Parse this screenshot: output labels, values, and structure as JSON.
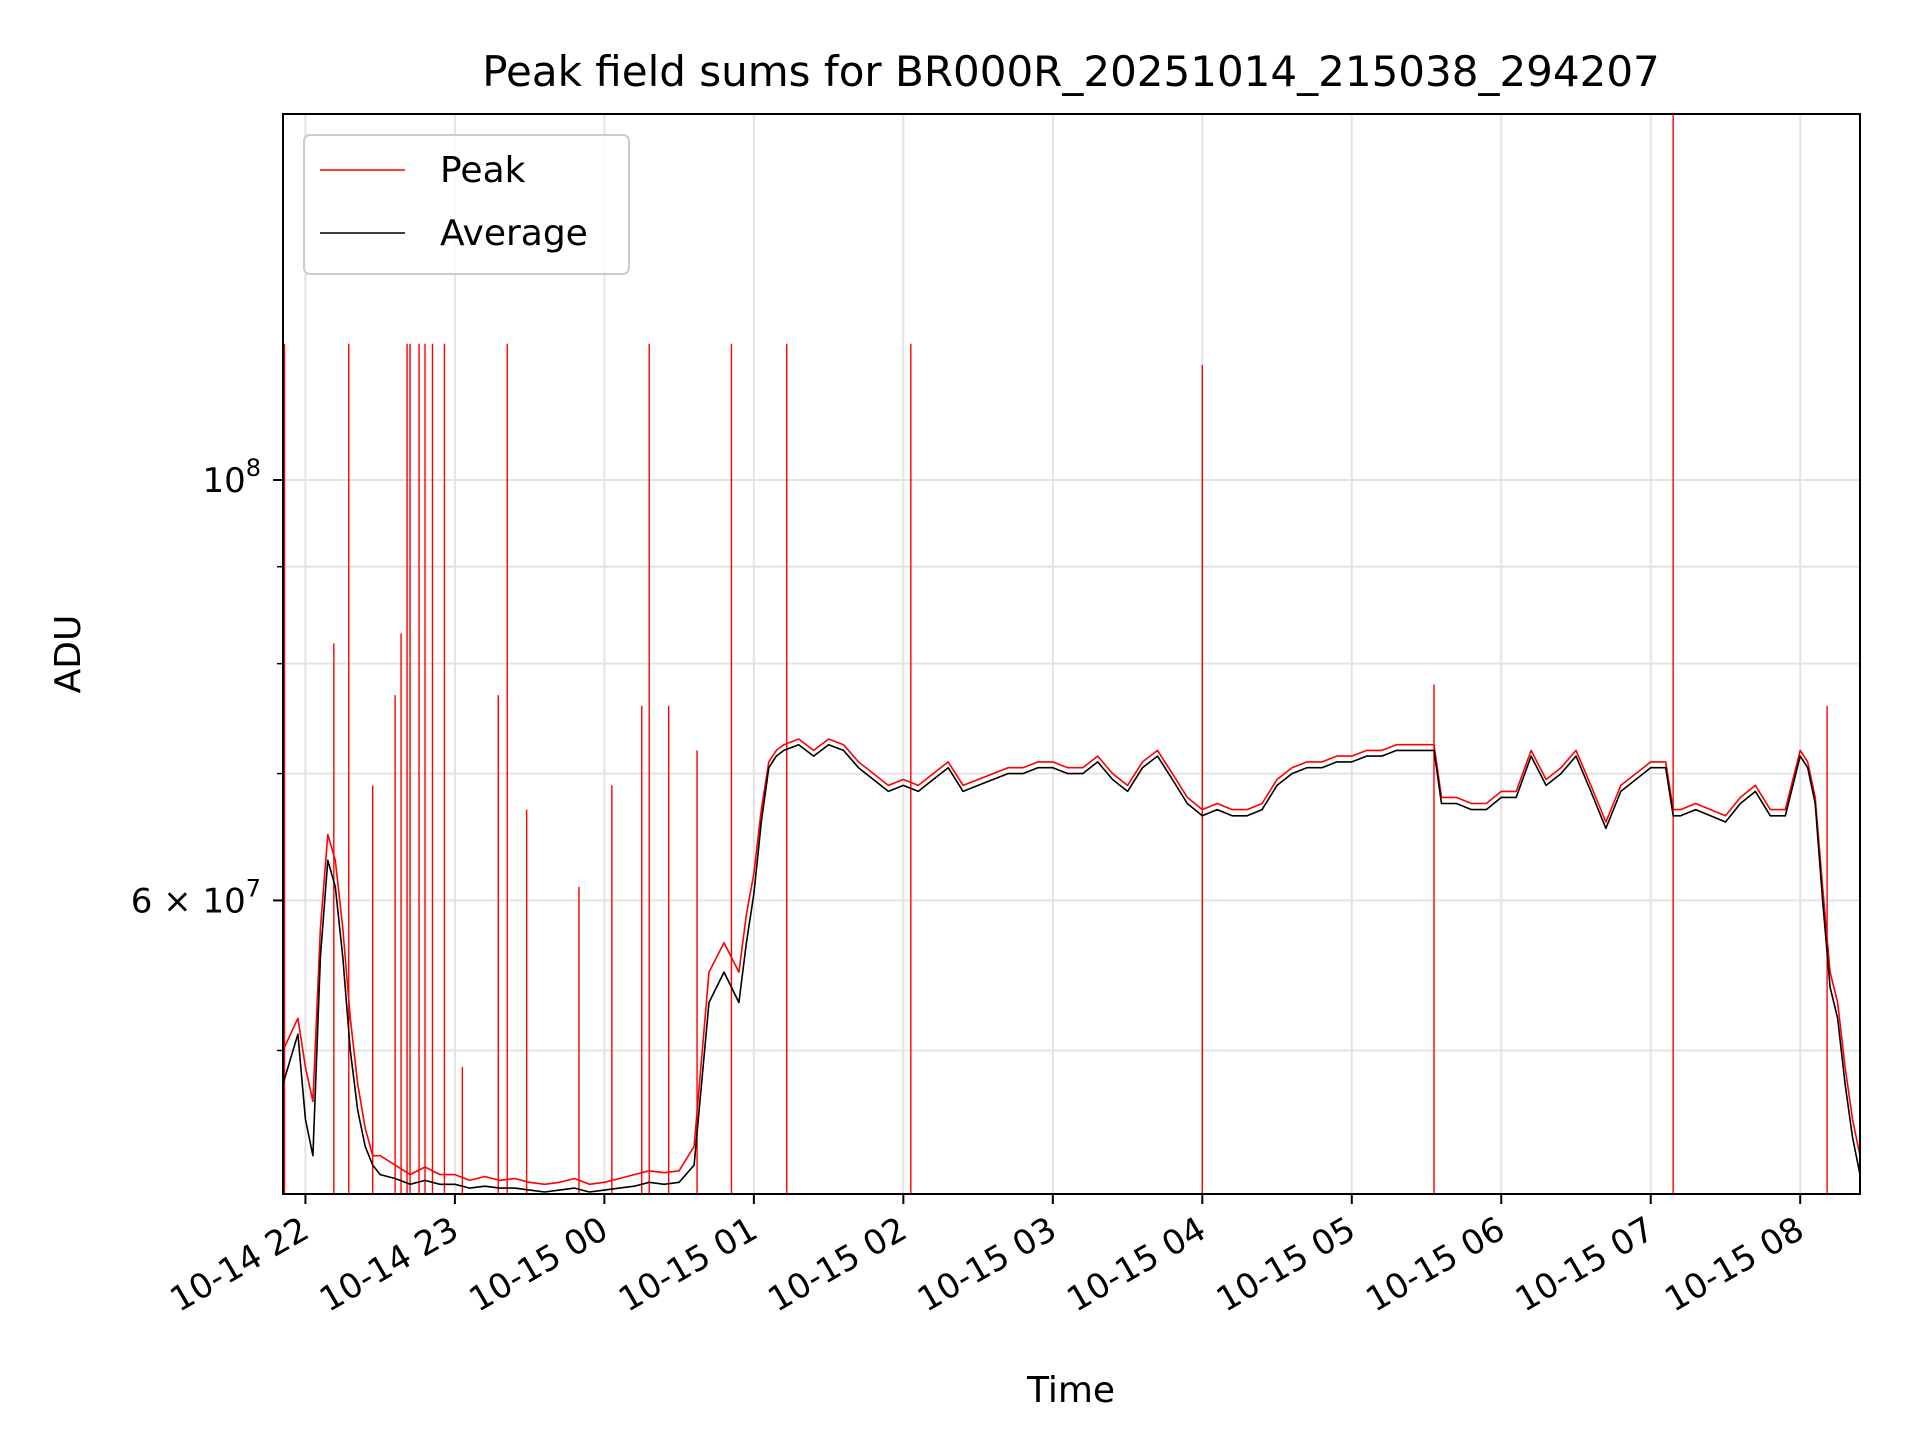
{
  "chart_data": {
    "type": "line",
    "title": "Peak field sums for BR000R_20251014_215038_294207",
    "xlabel": "Time",
    "ylabel": "ADU",
    "yscale": "log",
    "ylim": [
      42000000,
      156000000
    ],
    "xlim_hours": [
      -0.15,
      10.4
    ],
    "x_ticks": [
      {
        "hour": 0,
        "label": "10-14 22"
      },
      {
        "hour": 1,
        "label": "10-14 23"
      },
      {
        "hour": 2,
        "label": "10-15 00"
      },
      {
        "hour": 3,
        "label": "10-15 01"
      },
      {
        "hour": 4,
        "label": "10-15 02"
      },
      {
        "hour": 5,
        "label": "10-15 03"
      },
      {
        "hour": 6,
        "label": "10-15 04"
      },
      {
        "hour": 7,
        "label": "10-15 05"
      },
      {
        "hour": 8,
        "label": "10-15 06"
      },
      {
        "hour": 9,
        "label": "10-15 07"
      },
      {
        "hour": 10,
        "label": "10-15 08"
      }
    ],
    "y_major_ticks": [
      {
        "value": 60000000,
        "mantissa": "6",
        "base": "10",
        "exp": "7"
      },
      {
        "value": 100000000,
        "mantissa": "",
        "base": "10",
        "exp": "8"
      }
    ],
    "y_minor_ticks": [
      50000000,
      70000000,
      80000000,
      90000000
    ],
    "grid": true,
    "legend": {
      "position": "top-left",
      "entries": [
        {
          "name": "Peak",
          "color": "#ff0000"
        },
        {
          "name": "Average",
          "color": "#000000"
        }
      ]
    },
    "series": [
      {
        "name": "Peak",
        "color": "#ff0000",
        "x_hours": [
          -0.15,
          -0.1,
          -0.05,
          0,
          0.05,
          0.1,
          0.15,
          0.2,
          0.25,
          0.3,
          0.35,
          0.4,
          0.45,
          0.5,
          0.6,
          0.7,
          0.8,
          0.9,
          1.0,
          1.1,
          1.2,
          1.3,
          1.4,
          1.5,
          1.6,
          1.7,
          1.8,
          1.9,
          2.0,
          2.1,
          2.2,
          2.3,
          2.4,
          2.5,
          2.6,
          2.7,
          2.8,
          2.9,
          2.95,
          3.0,
          3.05,
          3.1,
          3.15,
          3.2,
          3.3,
          3.4,
          3.5,
          3.6,
          3.7,
          3.8,
          3.9,
          4.0,
          4.1,
          4.2,
          4.3,
          4.4,
          4.5,
          4.6,
          4.7,
          4.8,
          4.9,
          5.0,
          5.1,
          5.2,
          5.3,
          5.4,
          5.5,
          5.6,
          5.7,
          5.8,
          5.9,
          6.0,
          6.1,
          6.2,
          6.3,
          6.4,
          6.5,
          6.6,
          6.7,
          6.8,
          6.9,
          7.0,
          7.1,
          7.2,
          7.3,
          7.4,
          7.5,
          7.55,
          7.6,
          7.7,
          7.8,
          7.9,
          8.0,
          8.1,
          8.2,
          8.3,
          8.4,
          8.5,
          8.6,
          8.7,
          8.8,
          8.9,
          9.0,
          9.1,
          9.15,
          9.2,
          9.3,
          9.4,
          9.5,
          9.6,
          9.7,
          9.8,
          9.9,
          10.0,
          10.05,
          10.1,
          10.15,
          10.2,
          10.25,
          10.3,
          10.35,
          10.4
        ],
        "values_M": [
          50,
          51,
          52,
          49,
          47,
          58,
          65,
          63,
          58,
          52,
          48,
          45.5,
          44,
          44,
          43.5,
          43,
          43.4,
          43,
          43,
          42.7,
          42.9,
          42.7,
          42.8,
          42.6,
          42.5,
          42.6,
          42.8,
          42.5,
          42.6,
          42.8,
          43,
          43.2,
          43.1,
          43.2,
          44.5,
          55,
          57,
          55,
          59,
          62,
          67,
          71,
          72,
          72.5,
          73,
          72,
          73,
          72.5,
          71,
          70,
          69,
          69.5,
          69,
          70,
          71,
          69,
          69.5,
          70,
          70.5,
          70.5,
          71,
          71,
          70.5,
          70.5,
          71.5,
          70,
          69,
          71,
          72,
          70,
          68,
          67,
          67.5,
          67,
          67,
          67.5,
          69.5,
          70.5,
          71,
          71,
          71.5,
          71.5,
          72,
          72,
          72.5,
          72.5,
          72.5,
          72.5,
          68,
          68,
          67.5,
          67.5,
          68.5,
          68.5,
          72,
          69.5,
          70.5,
          72,
          69,
          66,
          69,
          70,
          71,
          71,
          67,
          67,
          67.5,
          67,
          66.5,
          68,
          69,
          67,
          67,
          72,
          71,
          68,
          61,
          55,
          53,
          49,
          46,
          44
        ]
      },
      {
        "name": "Average",
        "color": "#000000",
        "x_hours": [
          -0.15,
          -0.1,
          -0.05,
          0,
          0.05,
          0.1,
          0.15,
          0.2,
          0.25,
          0.3,
          0.35,
          0.4,
          0.45,
          0.5,
          0.6,
          0.7,
          0.8,
          0.9,
          1.0,
          1.1,
          1.2,
          1.3,
          1.4,
          1.5,
          1.6,
          1.7,
          1.8,
          1.9,
          2.0,
          2.1,
          2.2,
          2.3,
          2.4,
          2.5,
          2.6,
          2.7,
          2.8,
          2.9,
          2.95,
          3.0,
          3.05,
          3.1,
          3.15,
          3.2,
          3.3,
          3.4,
          3.5,
          3.6,
          3.7,
          3.8,
          3.9,
          4.0,
          4.1,
          4.2,
          4.3,
          4.4,
          4.5,
          4.6,
          4.7,
          4.8,
          4.9,
          5.0,
          5.1,
          5.2,
          5.3,
          5.4,
          5.5,
          5.6,
          5.7,
          5.8,
          5.9,
          6.0,
          6.1,
          6.2,
          6.3,
          6.4,
          6.5,
          6.6,
          6.7,
          6.8,
          6.9,
          7.0,
          7.1,
          7.2,
          7.3,
          7.4,
          7.5,
          7.55,
          7.6,
          7.7,
          7.8,
          7.9,
          8.0,
          8.1,
          8.2,
          8.3,
          8.4,
          8.5,
          8.6,
          8.7,
          8.8,
          8.9,
          9.0,
          9.1,
          9.15,
          9.2,
          9.3,
          9.4,
          9.5,
          9.6,
          9.7,
          9.8,
          9.9,
          10.0,
          10.05,
          10.1,
          10.15,
          10.2,
          10.25,
          10.3,
          10.35,
          10.4
        ],
        "values_M": [
          48,
          49.5,
          51,
          46,
          44,
          56,
          63,
          61,
          56,
          50,
          46.5,
          44.5,
          43.5,
          43,
          42.8,
          42.5,
          42.7,
          42.5,
          42.5,
          42.3,
          42.4,
          42.3,
          42.3,
          42.2,
          42.1,
          42.2,
          42.3,
          42.1,
          42.2,
          42.3,
          42.4,
          42.6,
          42.5,
          42.6,
          43.5,
          53,
          55,
          53,
          57,
          60.5,
          66,
          70.5,
          71.5,
          72,
          72.5,
          71.5,
          72.5,
          72,
          70.5,
          69.5,
          68.5,
          69,
          68.5,
          69.5,
          70.5,
          68.5,
          69,
          69.5,
          70,
          70,
          70.5,
          70.5,
          70,
          70,
          71,
          69.5,
          68.5,
          70.5,
          71.5,
          69.5,
          67.5,
          66.5,
          67,
          66.5,
          66.5,
          67,
          69,
          70,
          70.5,
          70.5,
          71,
          71,
          71.5,
          71.5,
          72,
          72,
          72,
          72,
          67.5,
          67.5,
          67,
          67,
          68,
          68,
          71.5,
          69,
          70,
          71.5,
          68.5,
          65.5,
          68.5,
          69.5,
          70.5,
          70.5,
          66.5,
          66.5,
          67,
          66.5,
          66,
          67.5,
          68.5,
          66.5,
          66.5,
          71.5,
          70.5,
          67.5,
          60,
          54,
          52,
          48,
          45,
          43
        ]
      },
      {
        "name": "Peak spikes",
        "color": "#ff0000",
        "spikes": [
          {
            "hour": -0.14,
            "value_M": 118
          },
          {
            "hour": 0.19,
            "value_M": 82
          },
          {
            "hour": 0.29,
            "value_M": 118
          },
          {
            "hour": 0.45,
            "value_M": 69
          },
          {
            "hour": 0.6,
            "value_M": 77
          },
          {
            "hour": 0.64,
            "value_M": 83
          },
          {
            "hour": 0.68,
            "value_M": 118
          },
          {
            "hour": 0.7,
            "value_M": 118
          },
          {
            "hour": 0.76,
            "value_M": 118
          },
          {
            "hour": 0.8,
            "value_M": 118
          },
          {
            "hour": 0.85,
            "value_M": 118
          },
          {
            "hour": 0.93,
            "value_M": 118
          },
          {
            "hour": 1.05,
            "value_M": 49
          },
          {
            "hour": 1.29,
            "value_M": 77
          },
          {
            "hour": 1.35,
            "value_M": 118
          },
          {
            "hour": 1.48,
            "value_M": 67
          },
          {
            "hour": 1.83,
            "value_M": 61
          },
          {
            "hour": 2.05,
            "value_M": 69
          },
          {
            "hour": 2.25,
            "value_M": 76
          },
          {
            "hour": 2.3,
            "value_M": 118
          },
          {
            "hour": 2.43,
            "value_M": 76
          },
          {
            "hour": 2.62,
            "value_M": 72
          },
          {
            "hour": 2.85,
            "value_M": 118
          },
          {
            "hour": 3.22,
            "value_M": 118
          },
          {
            "hour": 4.05,
            "value_M": 118
          },
          {
            "hour": 6.0,
            "value_M": 115
          },
          {
            "hour": 7.55,
            "value_M": 78
          },
          {
            "hour": 9.15,
            "value_M": 156
          },
          {
            "hour": 10.18,
            "value_M": 76
          }
        ]
      }
    ]
  }
}
